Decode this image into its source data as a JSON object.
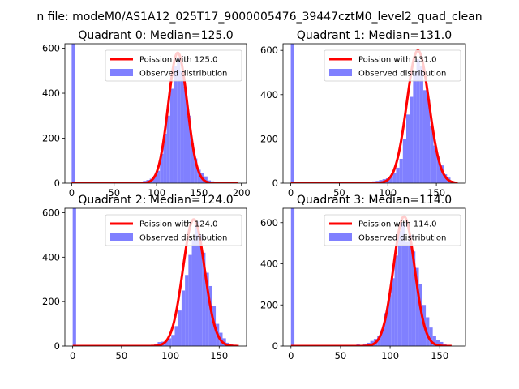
{
  "figure": {
    "suptitle": "n file: modeM0/AS1A12_025T17_9000005476_39447cztM0_level2_quad_clean",
    "legend_position": "upper right"
  },
  "chart_data": [
    {
      "type": "bar",
      "title": "Quadrant 0: Median=125.0",
      "xlabel": "",
      "ylabel": "",
      "xlim": [
        -8,
        206
      ],
      "ylim": [
        0,
        620
      ],
      "xticks": [
        0,
        50,
        100,
        150,
        200
      ],
      "xtick_labels": [
        "0",
        "50",
        "100",
        "150",
        "200"
      ],
      "yticks": [
        0,
        200,
        400,
        600
      ],
      "ytick_labels": [
        "0",
        "200",
        "400",
        "600"
      ],
      "grid": false,
      "bin_width": 4,
      "series": [
        {
          "name": "Observed distribution",
          "color": "#8080ff",
          "bins": [
            [
              0,
              620
            ],
            [
              76,
              5
            ],
            [
              80,
              6
            ],
            [
              84,
              10
            ],
            [
              88,
              14
            ],
            [
              92,
              20
            ],
            [
              96,
              32
            ],
            [
              100,
              55
            ],
            [
              104,
              130
            ],
            [
              108,
              220
            ],
            [
              112,
              300
            ],
            [
              116,
              420
            ],
            [
              120,
              520
            ],
            [
              124,
              560
            ],
            [
              128,
              500
            ],
            [
              132,
              430
            ],
            [
              136,
              300
            ],
            [
              140,
              180
            ],
            [
              144,
              110
            ],
            [
              148,
              60
            ],
            [
              152,
              45
            ],
            [
              156,
              30
            ],
            [
              160,
              12
            ],
            [
              164,
              8
            ],
            [
              168,
              4
            ],
            [
              172,
              2
            ],
            [
              188,
              1
            ]
          ]
        },
        {
          "name": "Poission with 125.0",
          "color": "#ff0000",
          "type": "line",
          "lambda": 125.0,
          "peak": 580,
          "x_range": [
            0,
            196
          ]
        }
      ]
    },
    {
      "type": "bar",
      "title": "Quadrant 1: Median=131.0",
      "xlabel": "",
      "ylabel": "",
      "xlim": [
        -8,
        180
      ],
      "ylim": [
        0,
        630
      ],
      "xticks": [
        0,
        50,
        100,
        150
      ],
      "xtick_labels": [
        "0",
        "50",
        "100",
        "150"
      ],
      "yticks": [
        0,
        200,
        400,
        600
      ],
      "ytick_labels": [
        "0",
        "200",
        "400",
        "600"
      ],
      "grid": false,
      "bin_width": 3.5,
      "series": [
        {
          "name": "Observed distribution",
          "color": "#8080ff",
          "bins": [
            [
              0,
              630
            ],
            [
              84,
              8
            ],
            [
              87.5,
              10
            ],
            [
              91,
              14
            ],
            [
              94.5,
              18
            ],
            [
              98,
              22
            ],
            [
              101.5,
              30
            ],
            [
              105,
              45
            ],
            [
              108.5,
              70
            ],
            [
              112,
              110
            ],
            [
              115.5,
              200
            ],
            [
              119,
              310
            ],
            [
              122.5,
              390
            ],
            [
              126,
              500
            ],
            [
              129.5,
              560
            ],
            [
              133,
              530
            ],
            [
              136.5,
              420
            ],
            [
              140,
              380
            ],
            [
              143.5,
              260
            ],
            [
              147,
              170
            ],
            [
              150.5,
              120
            ],
            [
              154,
              80
            ],
            [
              157.5,
              40
            ],
            [
              161,
              25
            ],
            [
              164.5,
              10
            ],
            [
              168,
              5
            ]
          ]
        },
        {
          "name": "Poission with 131.0",
          "color": "#ff0000",
          "type": "line",
          "lambda": 131.0,
          "peak": 600,
          "x_range": [
            0,
            172
          ]
        }
      ]
    },
    {
      "type": "bar",
      "title": "Quadrant 2: Median=124.0",
      "xlabel": "",
      "ylabel": "",
      "xlim": [
        -8,
        178
      ],
      "ylim": [
        0,
        620
      ],
      "xticks": [
        0,
        50,
        100,
        150
      ],
      "xtick_labels": [
        "0",
        "50",
        "100",
        "150"
      ],
      "yticks": [
        0,
        200,
        400,
        600
      ],
      "ytick_labels": [
        "0",
        "200",
        "400",
        "600"
      ],
      "grid": false,
      "bin_width": 3.5,
      "series": [
        {
          "name": "Observed distribution",
          "color": "#8080ff",
          "bins": [
            [
              0,
              620
            ],
            [
              80,
              5
            ],
            [
              83.5,
              10
            ],
            [
              87,
              18
            ],
            [
              90.5,
              20
            ],
            [
              94,
              25
            ],
            [
              97.5,
              35
            ],
            [
              101,
              50
            ],
            [
              104.5,
              90
            ],
            [
              108,
              160
            ],
            [
              111.5,
              250
            ],
            [
              115,
              320
            ],
            [
              118.5,
              410
            ],
            [
              122,
              480
            ],
            [
              125.5,
              560
            ],
            [
              129,
              500
            ],
            [
              132.5,
              420
            ],
            [
              136,
              330
            ],
            [
              139.5,
              270
            ],
            [
              143,
              180
            ],
            [
              146.5,
              100
            ],
            [
              150,
              60
            ],
            [
              153.5,
              35
            ],
            [
              157,
              15
            ],
            [
              160.5,
              8
            ],
            [
              164,
              3
            ]
          ]
        },
        {
          "name": "Poission with 124.0",
          "color": "#ff0000",
          "type": "line",
          "lambda": 124.0,
          "peak": 570,
          "x_range": [
            0,
            170
          ]
        }
      ]
    },
    {
      "type": "bar",
      "title": "Quadrant 3: Median=114.0",
      "xlabel": "",
      "ylabel": "",
      "xlim": [
        -8,
        176
      ],
      "ylim": [
        0,
        670
      ],
      "xticks": [
        0,
        50,
        100,
        150
      ],
      "xtick_labels": [
        "0",
        "50",
        "100",
        "150"
      ],
      "yticks": [
        0,
        200,
        400,
        600
      ],
      "ytick_labels": [
        "0",
        "200",
        "400",
        "600"
      ],
      "grid": false,
      "bin_width": 3.5,
      "series": [
        {
          "name": "Observed distribution",
          "color": "#8080ff",
          "bins": [
            [
              0,
              670
            ],
            [
              52,
              4
            ],
            [
              59,
              6
            ],
            [
              66,
              8
            ],
            [
              73,
              12
            ],
            [
              76.5,
              16
            ],
            [
              80,
              25
            ],
            [
              83.5,
              35
            ],
            [
              87,
              50
            ],
            [
              90.5,
              80
            ],
            [
              94,
              160
            ],
            [
              97.5,
              250
            ],
            [
              101,
              330
            ],
            [
              104.5,
              440
            ],
            [
              108,
              560
            ],
            [
              111.5,
              600
            ],
            [
              115,
              510
            ],
            [
              118.5,
              540
            ],
            [
              122,
              460
            ],
            [
              125.5,
              380
            ],
            [
              129,
              300
            ],
            [
              132.5,
              200
            ],
            [
              136,
              140
            ],
            [
              139.5,
              90
            ],
            [
              143,
              50
            ],
            [
              146.5,
              30
            ],
            [
              150,
              20
            ],
            [
              153.5,
              10
            ],
            [
              157,
              5
            ]
          ]
        },
        {
          "name": "Poission with 114.0",
          "color": "#ff0000",
          "type": "line",
          "lambda": 114.0,
          "peak": 630,
          "x_range": [
            0,
            162
          ]
        }
      ]
    }
  ]
}
